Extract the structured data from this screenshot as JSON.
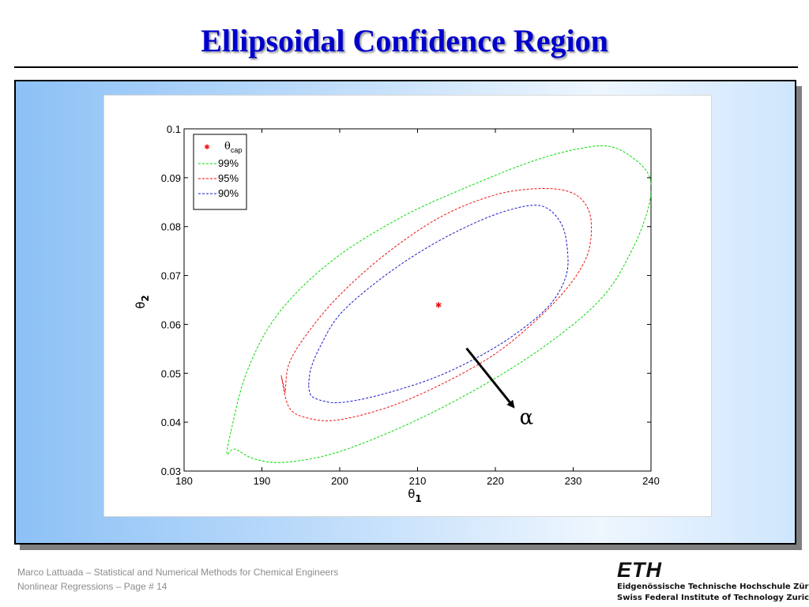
{
  "slide": {
    "title": "Ellipsoidal Confidence Region"
  },
  "footer": {
    "line1": "Marco Lattuada – Statistical and Numerical Methods for Chemical Engineers",
    "line2": "Nonlinear Regressions – Page #  14"
  },
  "logo": {
    "mark": "ETH",
    "line1": "Eidgenössische Technische Hochschule Zürich",
    "line2": "Swiss Federal Institute of Technology Zurich"
  },
  "colors": {
    "title": "#0000cc",
    "ellipse_99": "#00dd00",
    "ellipse_95": "#ee1111",
    "ellipse_90": "#1a1acc",
    "estimate": "#ee1111"
  },
  "chart_data": {
    "type": "line",
    "xlabel": "θ",
    "xlabel_sub": "1",
    "ylabel": "θ",
    "ylabel_sub": "2",
    "xlim": [
      180,
      240
    ],
    "ylim": [
      0.03,
      0.1
    ],
    "xticks": [
      180,
      190,
      200,
      210,
      220,
      230,
      240
    ],
    "yticks": [
      0.03,
      0.04,
      0.05,
      0.06,
      0.07,
      0.08,
      0.09,
      0.1
    ],
    "xtick_labels": [
      "180",
      "190",
      "200",
      "210",
      "220",
      "230",
      "240"
    ],
    "ytick_labels": [
      "0.03",
      "0.04",
      "0.05",
      "0.06",
      "0.07",
      "0.08",
      "0.09",
      "0.1"
    ],
    "grid": false,
    "legend_position": "top-left",
    "estimate": {
      "label": "θ",
      "label_sub": "cap",
      "x": 212.7,
      "y": 0.064
    },
    "series": [
      {
        "name": "99%",
        "style": "dashed",
        "color": "#00dd00",
        "x": [
          186,
          185.5,
          186.5,
          189,
          193,
          200,
          210,
          220,
          228,
          234,
          237.5,
          239.5,
          240,
          238.5,
          235,
          231,
          225,
          217,
          208,
          199,
          192,
          188,
          186
        ],
        "y": [
          0.038,
          0.0335,
          0.0345,
          0.0325,
          0.0318,
          0.034,
          0.0405,
          0.049,
          0.0575,
          0.066,
          0.075,
          0.083,
          0.089,
          0.093,
          0.0963,
          0.096,
          0.0935,
          0.0885,
          0.082,
          0.073,
          0.062,
          0.05,
          0.038
        ]
      },
      {
        "name": "95%",
        "style": "dashed",
        "color": "#ee1111",
        "x": [
          193,
          192.5,
          193.5,
          196,
          200,
          207,
          214,
          220,
          225,
          229,
          231.5,
          232.3,
          232,
          230,
          226,
          220,
          213,
          206,
          200,
          196,
          193.5,
          193
        ],
        "y": [
          0.046,
          0.0495,
          0.043,
          0.0408,
          0.0405,
          0.0435,
          0.0485,
          0.054,
          0.0605,
          0.067,
          0.073,
          0.078,
          0.0833,
          0.0868,
          0.0878,
          0.0865,
          0.082,
          0.0745,
          0.066,
          0.0585,
          0.052,
          0.046
        ]
      },
      {
        "name": "90%",
        "style": "dashed",
        "color": "#1a1acc",
        "x": [
          196,
          196.3,
          197.5,
          200,
          205,
          212,
          218,
          223,
          227,
          229,
          229.3,
          228.5,
          226,
          222,
          217,
          211,
          205,
          200,
          197.5,
          196.3,
          196
        ],
        "y": [
          0.0475,
          0.0455,
          0.0445,
          0.044,
          0.0455,
          0.049,
          0.0535,
          0.0585,
          0.064,
          0.0695,
          0.0745,
          0.0805,
          0.0842,
          0.0835,
          0.0805,
          0.0755,
          0.069,
          0.062,
          0.0555,
          0.051,
          0.0475
        ]
      }
    ],
    "annotation": {
      "label": "α",
      "from": [
        216.3,
        0.0551
      ],
      "to": [
        222.3,
        0.0432
      ]
    }
  }
}
